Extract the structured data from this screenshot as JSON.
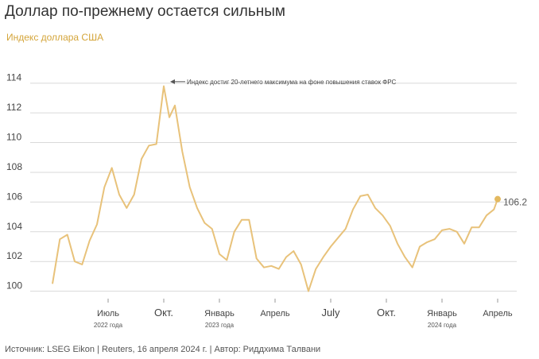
{
  "title": "Доллар по-прежнему остается сильным",
  "subtitle": "Индекс доллара США",
  "source": "Источник: LSEG Eikon | Reuters, 16 апреля 2024 г. | Автор: Риддхима Талвани",
  "chart_data": {
    "type": "line",
    "title": "Индекс доллара США",
    "xlabel": "",
    "ylabel": "",
    "ylim": [
      99.5,
      115
    ],
    "xlim": [
      0,
      24
    ],
    "grid": true,
    "yticks": [
      100,
      102,
      104,
      106,
      108,
      110,
      112,
      114
    ],
    "xticks": [
      {
        "label": "Июль",
        "sub": "2022 года",
        "x": 3.0
      },
      {
        "label": "Окт.",
        "sub": "",
        "x": 6.0
      },
      {
        "label": "Январь",
        "sub": "2023 года",
        "x": 9.0
      },
      {
        "label": "Апрель",
        "sub": "",
        "x": 12.0
      },
      {
        "label": "July",
        "sub": "",
        "x": 15.0
      },
      {
        "label": "Окт.",
        "sub": "",
        "x": 18.0
      },
      {
        "label": "Январь",
        "sub": "2024 года",
        "x": 21.0
      },
      {
        "label": "Апрель",
        "sub": "",
        "x": 24.0
      }
    ],
    "annotation": {
      "text": "Индекс достиг 20-летнего максимума на фоне повышения ставок ФРС",
      "x": 6.3,
      "y": 114.1
    },
    "last_value_label": "106.2",
    "series": [
      {
        "name": "Индекс доллара США",
        "x": [
          0,
          0.4,
          0.8,
          1.2,
          1.6,
          2.0,
          2.4,
          2.8,
          3.2,
          3.6,
          4.0,
          4.4,
          4.8,
          5.2,
          5.6,
          6.0,
          6.3,
          6.6,
          7.0,
          7.4,
          7.8,
          8.2,
          8.6,
          9.0,
          9.4,
          9.8,
          10.2,
          10.6,
          11.0,
          11.4,
          11.8,
          12.2,
          12.6,
          13.0,
          13.4,
          13.8,
          14.2,
          14.6,
          15.0,
          15.4,
          15.8,
          16.2,
          16.6,
          17.0,
          17.4,
          17.8,
          18.2,
          18.6,
          19.0,
          19.4,
          19.8,
          20.2,
          20.6,
          21.0,
          21.4,
          21.8,
          22.2,
          22.6,
          23.0,
          23.4,
          23.8,
          24.0
        ],
        "values": [
          100.5,
          103.5,
          103.8,
          102.0,
          101.8,
          103.4,
          104.5,
          107.0,
          108.3,
          106.5,
          105.6,
          106.5,
          108.9,
          109.8,
          109.9,
          113.8,
          111.7,
          112.5,
          109.4,
          107.0,
          105.6,
          104.6,
          104.2,
          102.5,
          102.1,
          104.0,
          104.8,
          104.8,
          102.2,
          101.6,
          101.7,
          101.5,
          102.3,
          102.7,
          101.8,
          100.0,
          101.5,
          102.3,
          103.0,
          103.6,
          104.2,
          105.5,
          106.4,
          106.5,
          105.6,
          105.1,
          104.4,
          103.2,
          102.3,
          101.6,
          103.0,
          103.3,
          103.5,
          104.1,
          104.2,
          104.0,
          103.2,
          104.3,
          104.3,
          105.1,
          105.5,
          106.2
        ]
      }
    ]
  }
}
